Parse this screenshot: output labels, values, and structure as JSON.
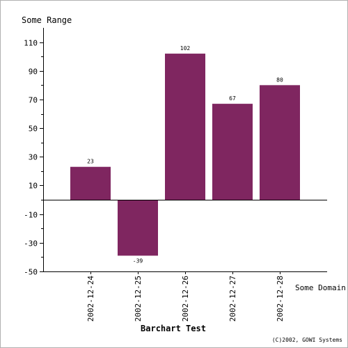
{
  "chart_data": {
    "type": "bar",
    "title": "Barchart Test",
    "ylabel": "Some Range",
    "xlabel": "Some Domain",
    "credit": "(C)2002, GOWI Systems",
    "categories": [
      "2002-12-24",
      "2002-12-25",
      "2002-12-26",
      "2002-12-27",
      "2002-12-28"
    ],
    "values": [
      23,
      -39,
      102,
      67,
      80
    ],
    "data_labels": [
      "23",
      "-39",
      "102",
      "67",
      "80"
    ],
    "ylim": [
      -50,
      120
    ],
    "y_ticks": [
      -50,
      -30,
      -10,
      10,
      30,
      50,
      70,
      90,
      110
    ],
    "y_tick_labels": [
      "-50",
      "-30",
      "-10",
      "10",
      "30",
      "50",
      "70",
      "90",
      "110"
    ],
    "bar_color": "#7f2660",
    "grid": false,
    "legend": "none"
  }
}
